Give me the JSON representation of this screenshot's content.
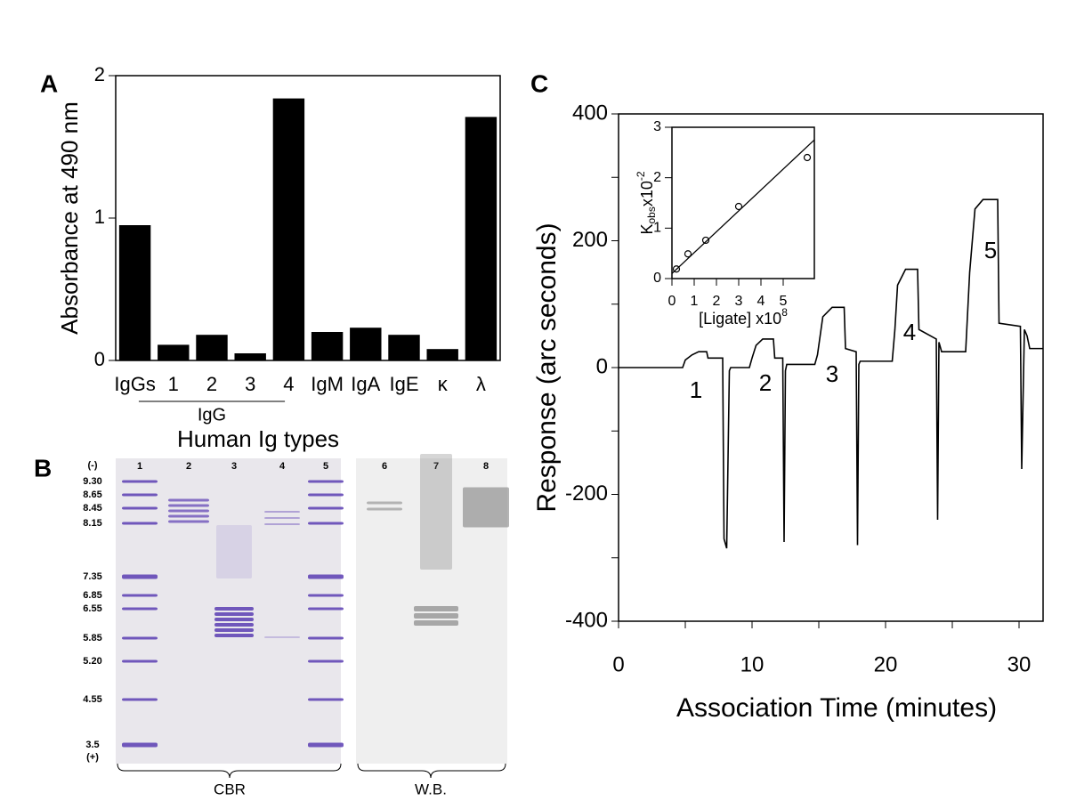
{
  "chart_data": [
    {
      "type": "bar",
      "panel": "A",
      "ylabel": "Absorbance at 490 nm",
      "xlabel": "Human Ig types",
      "categories": [
        "IgGs",
        "1",
        "2",
        "3",
        "4",
        "IgM",
        "IgA",
        "IgE",
        "κ",
        "λ"
      ],
      "values": [
        0.95,
        0.11,
        0.18,
        0.05,
        1.84,
        0.2,
        0.23,
        0.18,
        0.08,
        1.71
      ],
      "group_label": "IgG",
      "color": "#000000",
      "ylim": [
        0,
        2
      ],
      "yticks": [
        0,
        1,
        2
      ]
    },
    {
      "type": "line",
      "panel": "C",
      "ylabel": "Response (arc seconds)",
      "xlabel": "Association Time (minutes)",
      "x": [
        0,
        4.8,
        5.0,
        5.5,
        6.0,
        6.6,
        6.7,
        7.8,
        7.9,
        8.1,
        8.3,
        8.4,
        9.8,
        10.0,
        10.3,
        10.8,
        11.6,
        11.7,
        12.3,
        12.4,
        12.5,
        12.6,
        14.7,
        14.9,
        15.3,
        16.0,
        16.9,
        17.0,
        17.8,
        17.9,
        18.0,
        18.1,
        20.5,
        20.7,
        20.9,
        21.5,
        22.4,
        22.5,
        23.8,
        23.9,
        24.0,
        24.2,
        26.0,
        26.3,
        26.7,
        27.3,
        28.4,
        28.5,
        30.1,
        30.2,
        30.4,
        30.6,
        30.8,
        31.8
      ],
      "series": [
        {
          "color": "#000000",
          "values": [
            0,
            0,
            12,
            20,
            25,
            25,
            15,
            15,
            -270,
            -285,
            -5,
            0,
            0,
            15,
            35,
            45,
            45,
            15,
            15,
            -275,
            -5,
            5,
            5,
            20,
            80,
            95,
            95,
            30,
            25,
            -280,
            5,
            10,
            10,
            60,
            130,
            155,
            155,
            60,
            45,
            -240,
            40,
            25,
            25,
            150,
            250,
            265,
            265,
            70,
            65,
            -160,
            60,
            50,
            30,
            30
          ]
        }
      ],
      "annotations": [
        "1",
        "2",
        "3",
        "4",
        "5"
      ],
      "xlim": [
        0,
        31.8
      ],
      "xticks": [
        0,
        10,
        20,
        30
      ],
      "xminor_ticks": [
        5,
        15,
        25
      ],
      "ylim": [
        -400,
        400
      ],
      "yticks": [
        -400,
        -200,
        0,
        200,
        400
      ],
      "yminor_ticks": [
        -300,
        -100,
        100,
        300
      ]
    },
    {
      "type": "scatter",
      "xlabel": {
        "text": "[Ligate] x10",
        "sup": "8"
      },
      "ylabel": {
        "base": "K",
        "sub": "obs",
        "text": "x10",
        "sup": "-2"
      },
      "series": [
        {
          "color": "#000000",
          "marker": "circle",
          "x": [
            0.2,
            0.72,
            1.52,
            3.0,
            6.08
          ],
          "values": [
            0.19,
            0.49,
            0.76,
            1.43,
            2.4
          ]
        },
        {
          "color": "#000000",
          "marker": "none",
          "x": [
            0,
            6.4
          ],
          "values": [
            0.1,
            2.75
          ]
        }
      ],
      "xlim": [
        0,
        6.4
      ],
      "xticks": [
        0,
        1,
        2,
        3,
        4,
        5
      ],
      "ylim": [
        0,
        3
      ],
      "yticks": [
        0,
        1,
        2,
        3
      ]
    }
  ],
  "gel": {
    "panel": "B",
    "ph_markers": [
      "(-)",
      "9.30",
      "8.65",
      "8.45",
      "8.15",
      "7.35",
      "6.85",
      "6.55",
      "5.85",
      "5.20",
      "4.55",
      "3.5",
      "(+)"
    ],
    "lanes": [
      "1",
      "2",
      "3",
      "4",
      "5",
      "6",
      "7",
      "8"
    ],
    "groups": [
      "CBR",
      "W.B."
    ]
  }
}
